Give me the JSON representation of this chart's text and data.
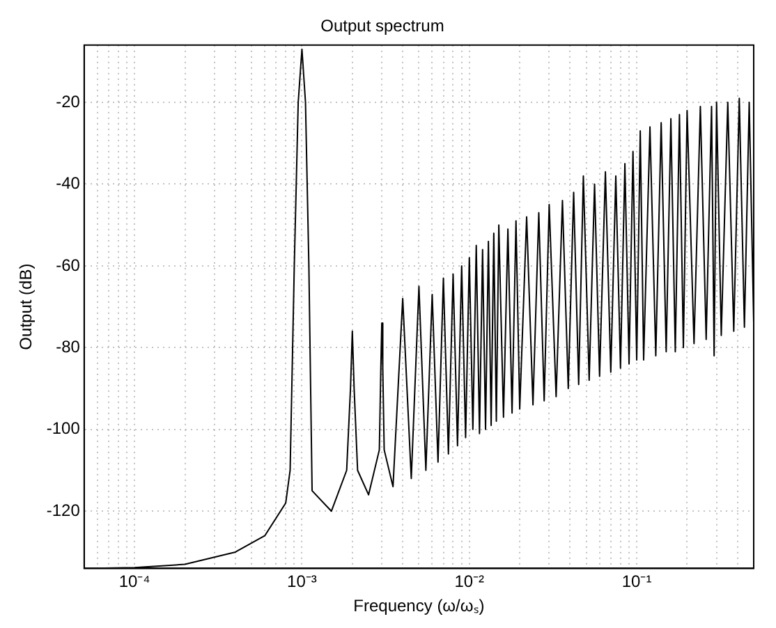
{
  "chart_data": {
    "type": "line",
    "title": "Output spectrum",
    "xlabel": "Frequency (ω/ωₛ)",
    "ylabel": "Output (dB)",
    "log": "x",
    "grid": true,
    "line_style": "solid",
    "marker": "none",
    "xlim": [
      5e-05,
      0.5
    ],
    "ylim": [
      -134,
      -6
    ],
    "xticks": [
      {
        "value": 6e-05,
        "label": null
      },
      {
        "value": 7e-05,
        "label": null
      },
      {
        "value": 8e-05,
        "label": null
      },
      {
        "value": 9e-05,
        "label": null
      },
      {
        "value": 0.0001,
        "label": "10⁻⁴"
      },
      {
        "value": 0.0002,
        "label": null
      },
      {
        "value": 0.0003,
        "label": null
      },
      {
        "value": 0.0004,
        "label": null
      },
      {
        "value": 0.0005,
        "label": null
      },
      {
        "value": 0.0006,
        "label": null
      },
      {
        "value": 0.0007,
        "label": null
      },
      {
        "value": 0.0008,
        "label": null
      },
      {
        "value": 0.0009,
        "label": null
      },
      {
        "value": 0.001,
        "label": "10⁻³"
      },
      {
        "value": 0.002,
        "label": null
      },
      {
        "value": 0.003,
        "label": null
      },
      {
        "value": 0.004,
        "label": null
      },
      {
        "value": 0.005,
        "label": null
      },
      {
        "value": 0.006,
        "label": null
      },
      {
        "value": 0.007,
        "label": null
      },
      {
        "value": 0.008,
        "label": null
      },
      {
        "value": 0.009,
        "label": null
      },
      {
        "value": 0.01,
        "label": "10⁻²"
      },
      {
        "value": 0.02,
        "label": null
      },
      {
        "value": 0.03,
        "label": null
      },
      {
        "value": 0.04,
        "label": null
      },
      {
        "value": 0.05,
        "label": null
      },
      {
        "value": 0.06,
        "label": null
      },
      {
        "value": 0.07,
        "label": null
      },
      {
        "value": 0.08,
        "label": null
      },
      {
        "value": 0.09,
        "label": null
      },
      {
        "value": 0.1,
        "label": "10⁻¹"
      },
      {
        "value": 0.2,
        "label": null
      },
      {
        "value": 0.3,
        "label": null
      },
      {
        "value": 0.4,
        "label": null
      }
    ],
    "yticks": [
      -120,
      -100,
      -80,
      -60,
      -40,
      -20
    ],
    "series": [
      {
        "color": "#000000",
        "x": [
          5e-05,
          0.0001,
          0.0002,
          0.0004,
          0.0006,
          0.0008,
          0.00085,
          0.0009,
          0.00095,
          0.001,
          0.00105,
          0.0011,
          0.00115,
          0.0015,
          0.00185,
          0.00195,
          0.002,
          0.00205,
          0.00215,
          0.0025,
          0.0029,
          0.00296,
          0.003,
          0.00304,
          0.0031,
          0.0035,
          0.004,
          0.0045,
          0.005,
          0.0055,
          0.006,
          0.0065,
          0.007,
          0.0075,
          0.008,
          0.0085,
          0.009,
          0.0095,
          0.01,
          0.0105,
          0.011,
          0.0115,
          0.012,
          0.0125,
          0.013,
          0.0135,
          0.014,
          0.0145,
          0.015,
          0.016,
          0.017,
          0.018,
          0.019,
          0.02,
          0.022,
          0.024,
          0.026,
          0.028,
          0.03,
          0.033,
          0.036,
          0.039,
          0.042,
          0.045,
          0.048,
          0.052,
          0.056,
          0.06,
          0.065,
          0.07,
          0.075,
          0.08,
          0.085,
          0.09,
          0.095,
          0.1,
          0.105,
          0.11,
          0.12,
          0.13,
          0.14,
          0.15,
          0.16,
          0.17,
          0.18,
          0.19,
          0.2,
          0.22,
          0.24,
          0.26,
          0.28,
          0.29,
          0.3,
          0.32,
          0.35,
          0.38,
          0.41,
          0.44,
          0.47,
          0.5
        ],
        "values": [
          -134,
          -133.8,
          -133,
          -130,
          -126,
          -118,
          -110,
          -60,
          -20,
          -7,
          -20,
          -60,
          -115,
          -120,
          -110,
          -90,
          -76,
          -90,
          -110,
          -116,
          -105,
          -85,
          -74,
          -85,
          -105,
          -114,
          -68,
          -112,
          -65,
          -110,
          -67,
          -108,
          -63,
          -106,
          -62,
          -104,
          -60,
          -102,
          -58,
          -100,
          -55,
          -101,
          -56,
          -100,
          -54,
          -99,
          -52,
          -98,
          -50,
          -97,
          -51,
          -96,
          -49,
          -95,
          -48,
          -94,
          -47,
          -93,
          -45,
          -92,
          -44,
          -90,
          -42,
          -89,
          -38,
          -88,
          -40,
          -87,
          -37,
          -86,
          -38,
          -85,
          -35,
          -84,
          -32,
          -83,
          -27,
          -83,
          -26,
          -82,
          -25,
          -81,
          -24,
          -81,
          -23,
          -80,
          -22,
          -79,
          -21,
          -78,
          -21,
          -82,
          -20,
          -77,
          -20,
          -76,
          -19,
          -75,
          -20,
          -74
        ]
      }
    ]
  }
}
